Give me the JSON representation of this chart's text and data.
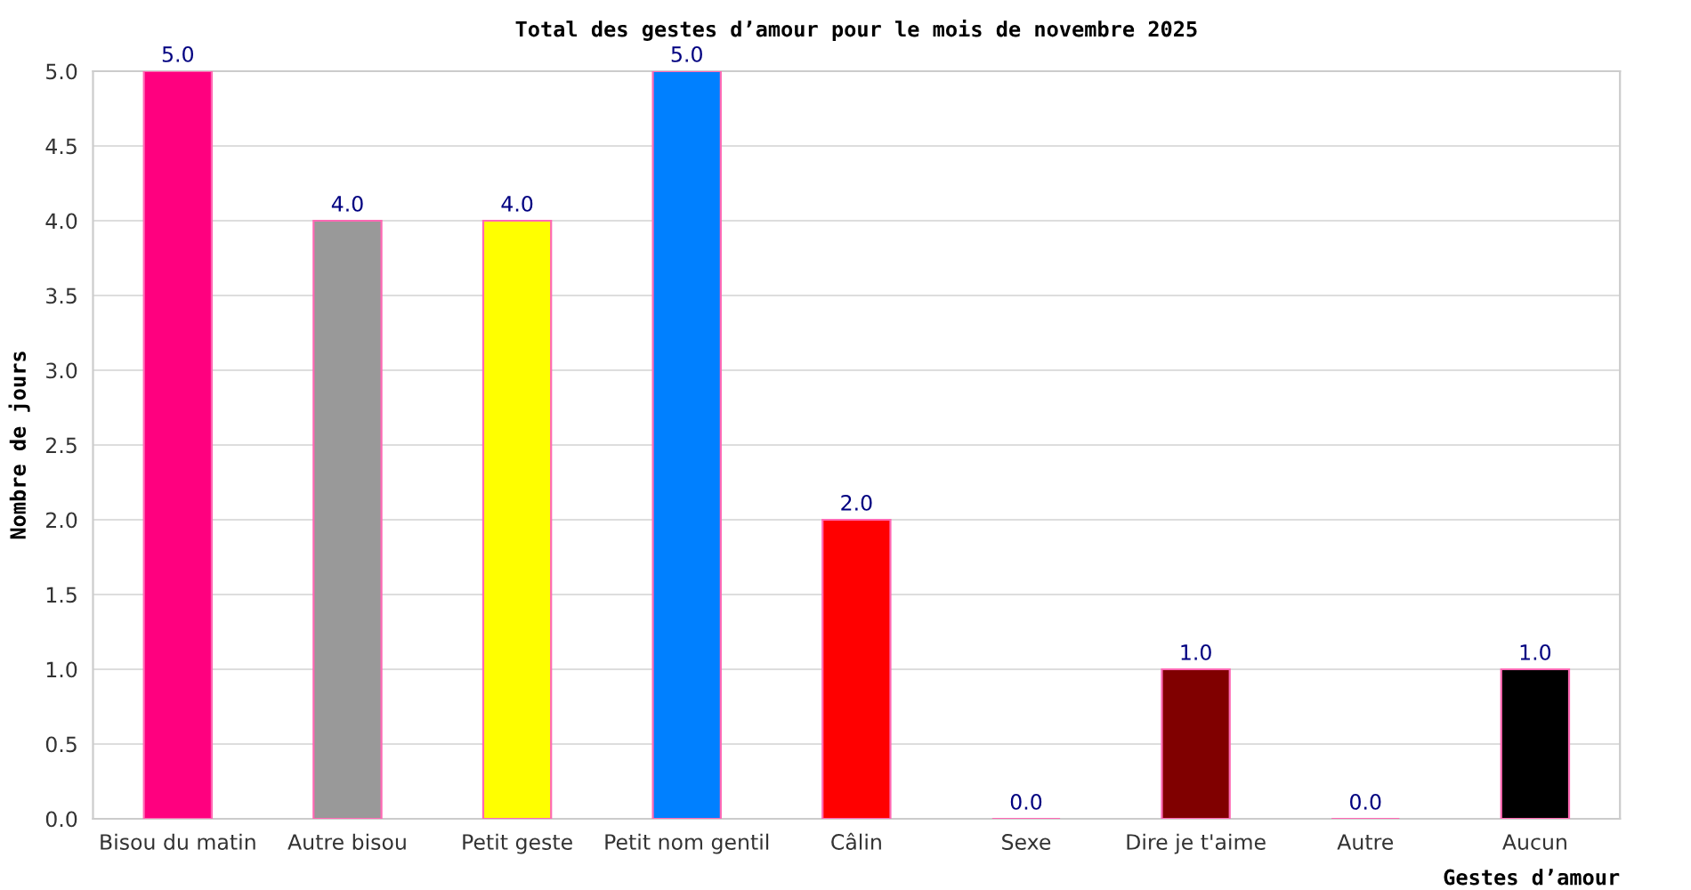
{
  "chart_data": {
    "type": "bar",
    "title": "Total des gestes d’amour pour le mois de novembre 2025",
    "xlabel": "Gestes d’amour",
    "ylabel": "Nombre de jours",
    "categories": [
      "Bisou du matin",
      "Autre bisou",
      "Petit geste",
      "Petit nom gentil",
      "Câlin",
      "Sexe",
      "Dire je t'aime",
      "Autre",
      "Aucun"
    ],
    "values": [
      5,
      4,
      4,
      5,
      2,
      0,
      1,
      0,
      1
    ],
    "colors": [
      "#ff007f",
      "#999999",
      "#ffff00",
      "#0080ff",
      "#ff0000",
      "#ff69b4",
      "#800000",
      "#ff69b4",
      "#000000"
    ],
    "value_labels": [
      "5.0",
      "4.0",
      "4.0",
      "5.0",
      "2.0",
      "0.0",
      "1.0",
      "0.0",
      "1.0"
    ],
    "ylim": [
      0,
      5
    ],
    "yticks": [
      "0.0",
      "0.5",
      "1.0",
      "1.5",
      "2.0",
      "2.5",
      "3.0",
      "3.5",
      "4.0",
      "4.5",
      "5.0"
    ],
    "grid": "y"
  }
}
